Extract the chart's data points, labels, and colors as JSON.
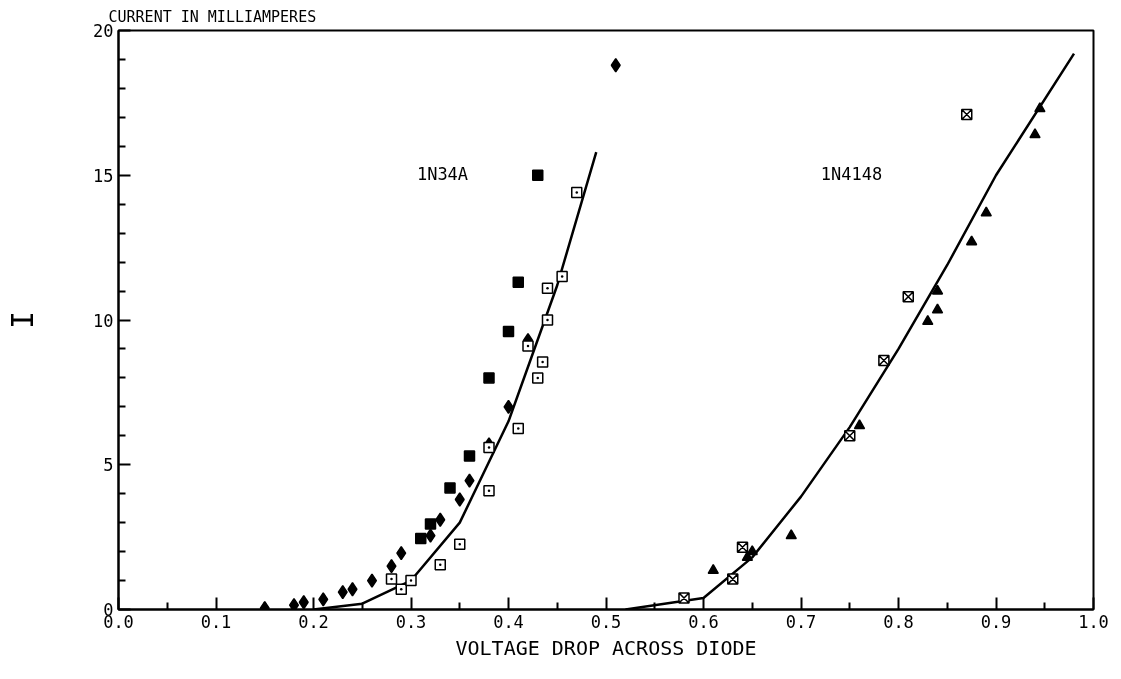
{
  "chart_data": {
    "type": "scatter",
    "title": "CURRENT IN MILLIAMPERES",
    "xlabel": "VOLTAGE DROP ACROSS DIODE",
    "ylabel": "I",
    "xlim": [
      0,
      1.0
    ],
    "ylim": [
      0,
      20
    ],
    "xticks": [
      {
        "value": 0,
        "label": "0.0"
      },
      0.1,
      0.2,
      0.3,
      0.4,
      0.5,
      0.6,
      0.7,
      0.8,
      0.9,
      {
        "value": 1.0,
        "label": "1.0"
      }
    ],
    "yticks": [
      0,
      5,
      10,
      15,
      20
    ],
    "grid": false,
    "annotations": [
      "1N34A",
      "1N4148"
    ],
    "series": [
      {
        "marker": "diamond",
        "color": "#000000",
        "x": [
          0.15,
          0.18,
          0.19,
          0.21,
          0.23,
          0.24,
          0.26,
          0.28,
          0.29,
          0.32,
          0.33,
          0.35,
          0.36,
          0.38,
          0.4,
          0.42,
          0.51
        ],
        "values": [
          0.05,
          0.15,
          0.25,
          0.35,
          0.6,
          0.7,
          1.0,
          1.5,
          1.95,
          2.55,
          3.1,
          3.8,
          4.45,
          5.7,
          7.0,
          9.3,
          18.8
        ]
      },
      {
        "marker": "square_open",
        "color": "#000000",
        "x": [
          0.28,
          0.29,
          0.3,
          0.33,
          0.35,
          0.38,
          0.38,
          0.41,
          0.42,
          0.43,
          0.435,
          0.44,
          0.44,
          0.455,
          0.47
        ],
        "values": [
          1.05,
          0.7,
          1.0,
          1.55,
          2.25,
          4.1,
          5.6,
          6.25,
          9.1,
          8.0,
          8.55,
          10.0,
          11.1,
          11.5,
          14.4
        ]
      },
      {
        "marker": "square",
        "color": "#000000",
        "x": [
          0.31,
          0.32,
          0.34,
          0.36,
          0.38,
          0.4,
          0.41,
          0.43
        ],
        "values": [
          2.45,
          2.95,
          4.2,
          5.3,
          8.0,
          9.6,
          11.3,
          15.0
        ]
      },
      {
        "marker": "cross",
        "color": "#000000",
        "x": [
          0.58,
          0.63,
          0.64,
          0.75,
          0.785,
          0.81,
          0.87
        ],
        "values": [
          0.4,
          1.05,
          2.15,
          6.0,
          8.6,
          10.8,
          17.1
        ]
      },
      {
        "marker": "triangle",
        "color": "#000000",
        "x": [
          0.61,
          0.645,
          0.65,
          0.69,
          0.76,
          0.83,
          0.84,
          0.84,
          0.875,
          0.89,
          0.94,
          0.945
        ],
        "values": [
          1.35,
          1.8,
          2.0,
          2.55,
          6.35,
          9.95,
          10.35,
          11.0,
          12.7,
          13.7,
          16.4,
          17.3
        ]
      },
      {
        "type": "line",
        "line_style": "solid",
        "color": "#000000",
        "x": [
          0.2,
          0.25,
          0.3,
          0.35,
          0.4,
          0.45,
          0.49
        ],
        "values": [
          0,
          0.2,
          1.0,
          3.0,
          6.5,
          11.2,
          15.8
        ]
      },
      {
        "type": "line",
        "line_style": "solid",
        "color": "#000000",
        "x": [
          0.52,
          0.6,
          0.65,
          0.7,
          0.75,
          0.8,
          0.85,
          0.9,
          0.98
        ],
        "values": [
          0,
          0.4,
          1.8,
          3.9,
          6.3,
          9.0,
          11.9,
          15.0,
          19.2
        ]
      }
    ]
  }
}
